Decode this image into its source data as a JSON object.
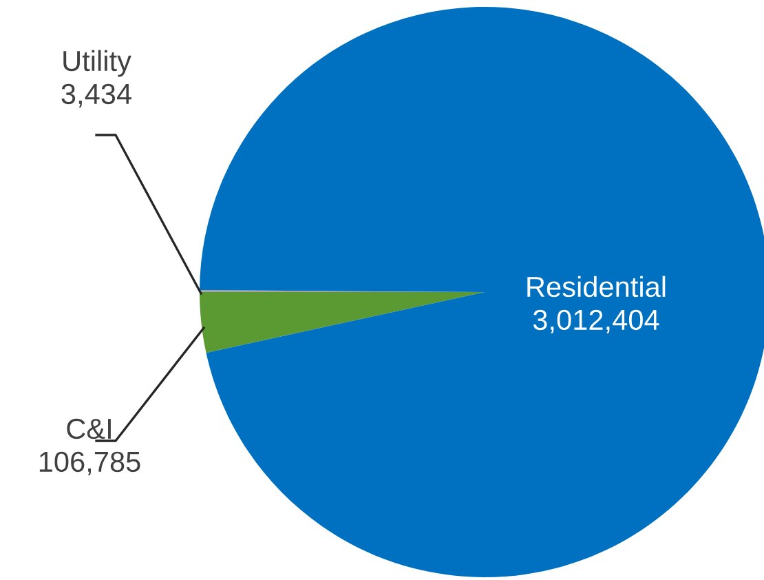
{
  "chart_data": {
    "type": "pie",
    "categories": [
      "Utility",
      "C&I",
      "Residential"
    ],
    "values": [
      3434,
      106785,
      3012404
    ],
    "value_labels": [
      "3,434",
      "106,785",
      "3,012,404"
    ],
    "colors": [
      "#a5a5a5",
      "#5b9a32",
      "#0070c0"
    ],
    "data_labels": true,
    "legend": false
  }
}
